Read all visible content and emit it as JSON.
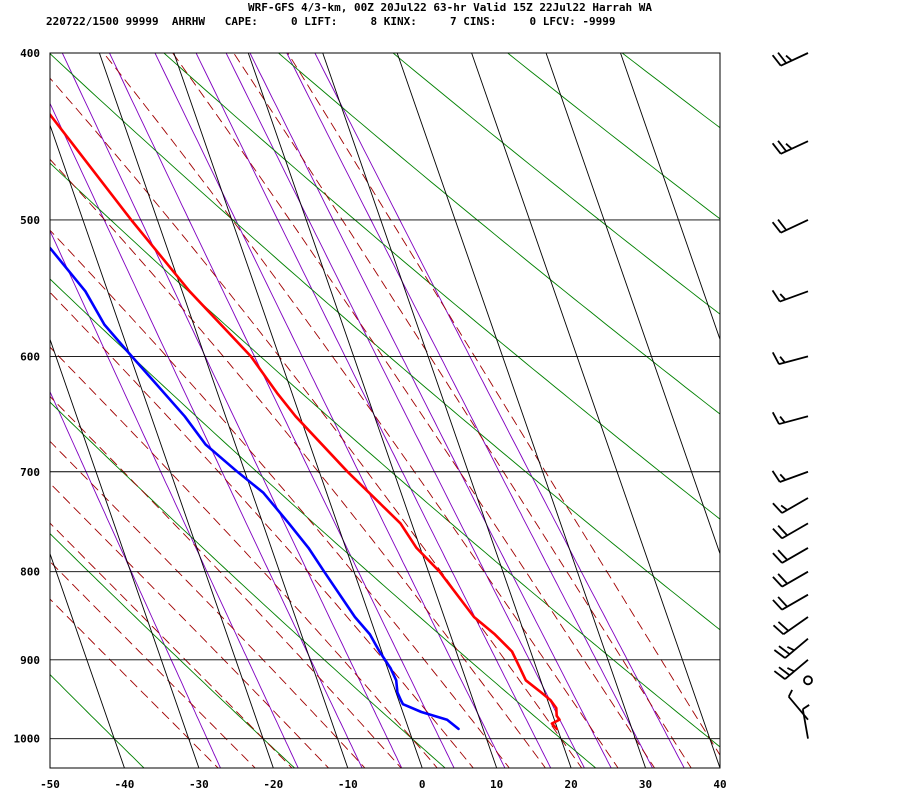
{
  "header": {
    "title": "WRF-GFS 4/3-km, 00Z 20Jul22 63-hr Valid 15Z 22Jul22 Harrah WA",
    "stats": "220722/1500 99999  AHRHW   CAPE:     0 LIFT:     8 KINX:     7 CINS:     0 LFCV: -9999"
  },
  "colors": {
    "temperature": "#ff0000",
    "dewpoint": "#0000ff",
    "isotherm": "#000000",
    "dry_adiabat": "#008000",
    "moist_adiabat": "#a00000",
    "mixing_ratio": "#8000c0"
  },
  "chart_data": {
    "type": "line",
    "chart_kind": "skew-t log-p",
    "xlim": [
      -50,
      40
    ],
    "ylim": [
      1040,
      400
    ],
    "y_scale": "log",
    "grid": true,
    "x_ticks": [
      -50,
      -40,
      -30,
      -20,
      -10,
      0,
      10,
      20,
      30,
      40
    ],
    "y_ticks": [
      400,
      500,
      600,
      700,
      800,
      900,
      1000
    ],
    "series": [
      {
        "key": "temperature",
        "p": [
          987,
          980,
          975,
          970,
          960,
          950,
          940,
          925,
          910,
          890,
          870,
          850,
          800,
          775,
          750,
          700,
          650,
          630,
          600,
          550,
          500,
          450,
          405
        ],
        "t": [
          19.9,
          19.5,
          20.7,
          20.5,
          20.8,
          20.4,
          19.5,
          18.0,
          17.8,
          17.5,
          16.0,
          14.0,
          11.5,
          9.5,
          8.5,
          3.8,
          -0.6,
          -2.0,
          -3.8,
          -9.0,
          -13.5,
          -18.0,
          -22.5
        ]
      },
      {
        "key": "dewpoint",
        "p": [
          987,
          975,
          965,
          955,
          950,
          940,
          925,
          910,
          890,
          870,
          850,
          800,
          775,
          750,
          720,
          700,
          675,
          650,
          600,
          575,
          550,
          500,
          460,
          450,
          405
        ],
        "td": [
          6.7,
          5.6,
          2.5,
          0.4,
          0.3,
          0.2,
          0.6,
          0.4,
          -0.3,
          -0.8,
          -2.0,
          -4.0,
          -5.0,
          -6.5,
          -8.5,
          -11.0,
          -14.0,
          -15.5,
          -19.8,
          -22.0,
          -23.0,
          -27.5,
          -31.8,
          -32.0,
          -36.0
        ]
      }
    ],
    "wind_barbs": [
      {
        "p": 1000,
        "dir": 350,
        "kt": 5
      },
      {
        "p": 975,
        "dir": 320,
        "kt": 5
      },
      {
        "p": 925,
        "dir": 0,
        "kt": 0
      },
      {
        "p": 900,
        "dir": 230,
        "kt": 25
      },
      {
        "p": 875,
        "dir": 230,
        "kt": 25
      },
      {
        "p": 850,
        "dir": 235,
        "kt": 20
      },
      {
        "p": 825,
        "dir": 240,
        "kt": 20
      },
      {
        "p": 800,
        "dir": 240,
        "kt": 20
      },
      {
        "p": 775,
        "dir": 240,
        "kt": 20
      },
      {
        "p": 750,
        "dir": 240,
        "kt": 20
      },
      {
        "p": 725,
        "dir": 240,
        "kt": 15
      },
      {
        "p": 700,
        "dir": 250,
        "kt": 15
      },
      {
        "p": 650,
        "dir": 255,
        "kt": 15
      },
      {
        "p": 600,
        "dir": 255,
        "kt": 15
      },
      {
        "p": 550,
        "dir": 250,
        "kt": 15
      },
      {
        "p": 500,
        "dir": 245,
        "kt": 20
      },
      {
        "p": 450,
        "dir": 245,
        "kt": 25
      },
      {
        "p": 400,
        "dir": 245,
        "kt": 25
      }
    ]
  }
}
